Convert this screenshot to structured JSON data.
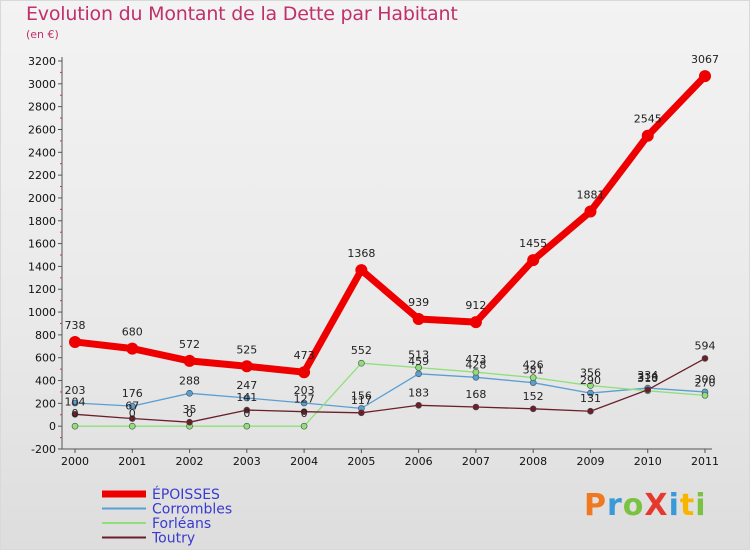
{
  "chart_data": {
    "type": "line",
    "title": "Evolution du Montant de la Dette par Habitant",
    "subtitle": "(en €)",
    "x": [
      "2000",
      "2001",
      "2002",
      "2003",
      "2004",
      "2005",
      "2006",
      "2007",
      "2008",
      "2009",
      "2010",
      "2011"
    ],
    "ylim": [
      -200,
      3200
    ],
    "yticks": [
      -200,
      0,
      200,
      400,
      600,
      800,
      1000,
      1200,
      1400,
      1600,
      1800,
      2000,
      2200,
      2400,
      2600,
      2800,
      3000,
      3200
    ],
    "grid": false,
    "legend": "bottom-left",
    "series": [
      {
        "name": "ÉPOISSES",
        "color": "#ee0000",
        "values": [
          738,
          680,
          572,
          525,
          473,
          1368,
          939,
          912,
          1455,
          1881,
          2545,
          3067
        ]
      },
      {
        "name": "Corrombles",
        "color": "#5a9fd4",
        "values": [
          203,
          176,
          288,
          247,
          203,
          156,
          459,
          428,
          381,
          290,
          334,
          300
        ]
      },
      {
        "name": "Forléans",
        "color": "#90e07a",
        "values": [
          0,
          0,
          0,
          0,
          0,
          552,
          513,
          473,
          426,
          356,
          310,
          270
        ]
      },
      {
        "name": "Toutry",
        "color": "#6b1f2a",
        "values": [
          104,
          67,
          35,
          141,
          127,
          117,
          183,
          168,
          152,
          131,
          319,
          594
        ]
      }
    ],
    "labels": [
      [
        "738",
        "680",
        "572",
        "525",
        "473",
        "1368",
        "939",
        "912",
        "1455",
        "1881",
        "2545",
        "3067"
      ],
      [
        "203",
        "176",
        "288",
        "247",
        "203",
        "156",
        "459",
        "428",
        "381",
        "290",
        "334",
        "300"
      ],
      [
        "0",
        "0",
        "0",
        "0",
        "0",
        "552",
        "513",
        "473",
        "426",
        "356",
        "310",
        "270"
      ],
      [
        "104",
        "67",
        "35",
        "141",
        "127",
        "117",
        "183",
        "168",
        "152",
        "131",
        "319",
        "594"
      ]
    ]
  },
  "brand": {
    "text": "ProXiti",
    "colors": [
      "#f07820",
      "#3a9ad9",
      "#7cc242",
      "#e6392e",
      "#3a9ad9",
      "#f7b500",
      "#7cc242"
    ]
  }
}
